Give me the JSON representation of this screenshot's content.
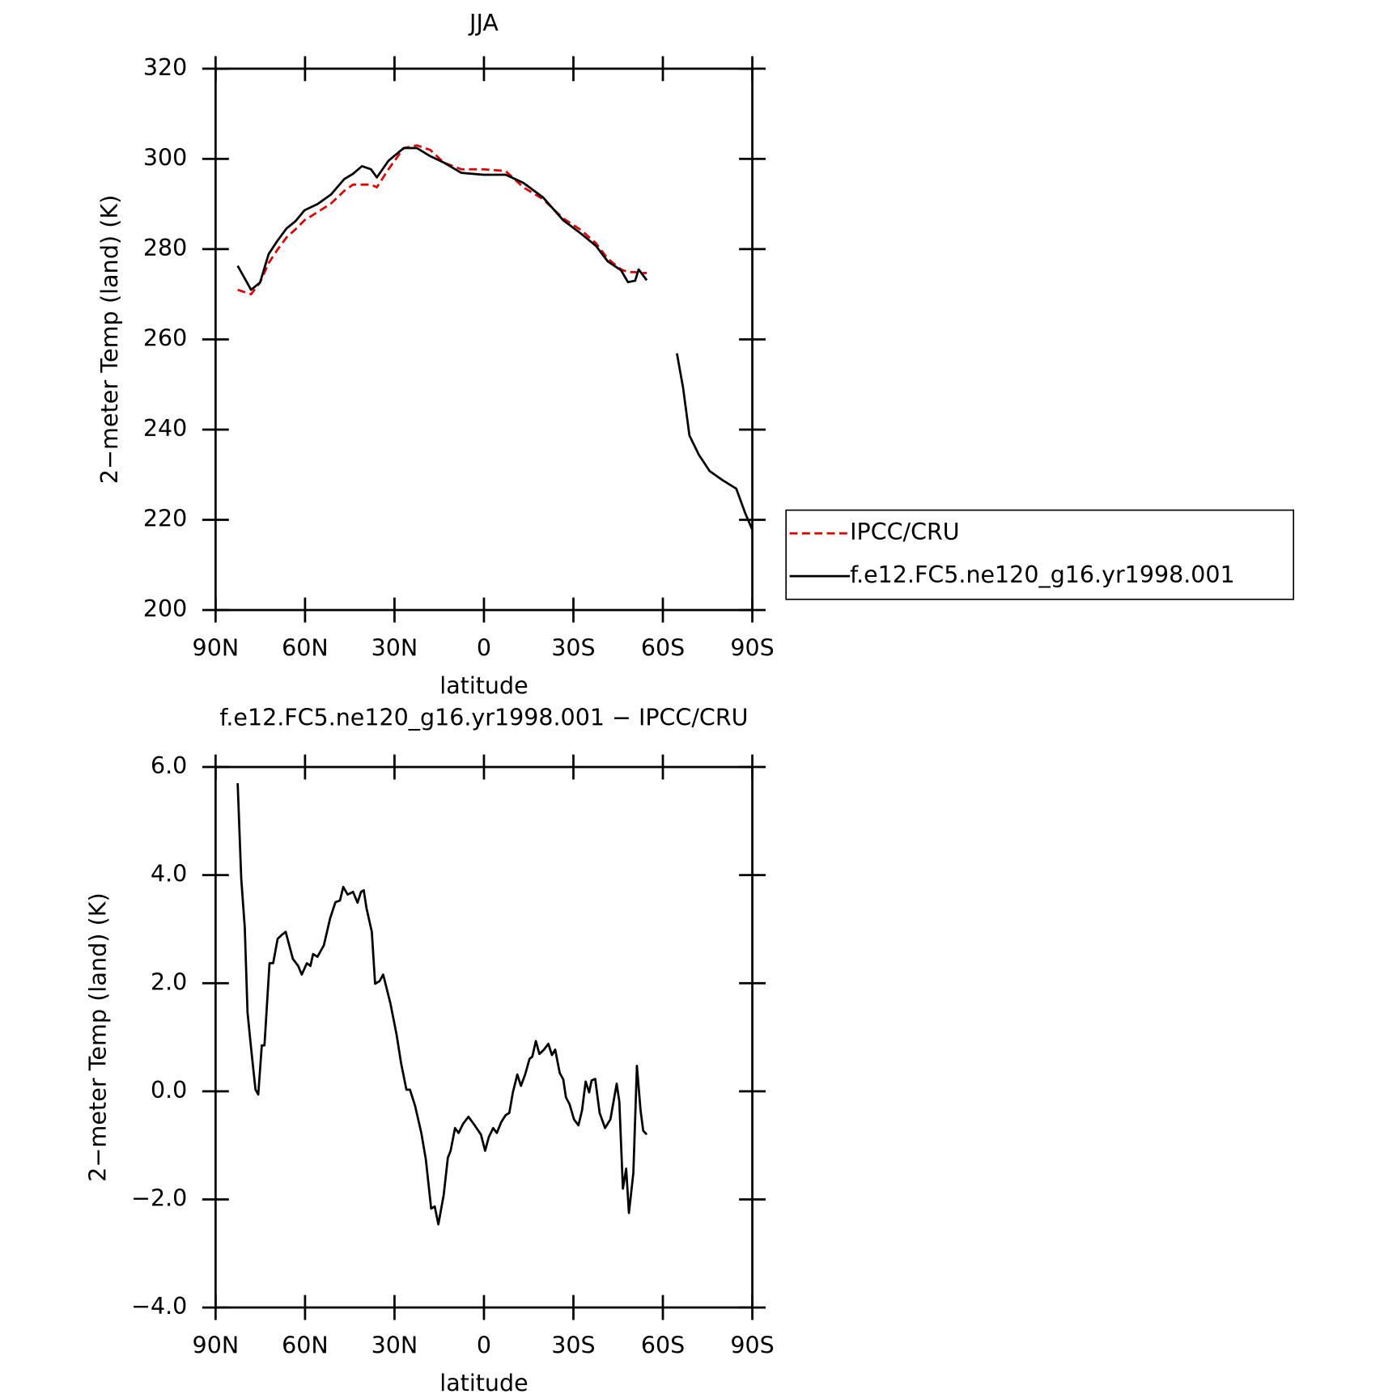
{
  "chart_data": [
    {
      "type": "line",
      "title": "JJA",
      "x_label": "latitude",
      "y_label": "2−meter Temp (land) (K)",
      "x": [
        82.6,
        78.1,
        75.1,
        72.2,
        69.2,
        66.2,
        63.2,
        60.2,
        55.8,
        51.3,
        46.9,
        43.9,
        40.9,
        37.9,
        35.9,
        32,
        26.9,
        22.5,
        18,
        13.5,
        7.6,
        0.2,
        -7.3,
        -13.2,
        -19.8,
        -26.6,
        -32.6,
        -37.6,
        -41.5,
        -46,
        -48.3,
        -50.7,
        -51.9,
        -54.6,
        -60,
        -64.7,
        -66.8,
        -68.9,
        -72.1,
        -75.7,
        -80.2,
        -84.6,
        -87.6,
        -90
      ],
      "series": [
        {
          "name": "IPCC/CRU",
          "color": "#e00000",
          "dashed": true,
          "values": [
            271,
            270,
            272.6,
            276.9,
            279.9,
            282.6,
            284.4,
            286.4,
            288.2,
            290.1,
            292.9,
            294.3,
            294.3,
            294.3,
            293.7,
            297.7,
            302.4,
            303,
            302,
            299.2,
            297.7,
            297.7,
            297.3,
            293.7,
            291.1,
            286.8,
            284.2,
            281.3,
            277.9,
            275.5,
            274.9,
            274.9,
            274.7,
            274.7,
            null,
            null,
            null,
            null,
            null,
            null,
            null,
            null,
            null,
            null
          ]
        },
        {
          "name": "f.e12.FC5.ne120_g16.yr1998.001",
          "color": "#000000",
          "dashed": false,
          "values": [
            276.3,
            271,
            272.6,
            278.9,
            281.9,
            284.6,
            286.2,
            288.6,
            290,
            292.1,
            295.5,
            296.7,
            298.4,
            297.7,
            295.9,
            299.6,
            302.4,
            302.4,
            300.6,
            299.2,
            296.9,
            296.5,
            296.5,
            294.7,
            291.5,
            286.4,
            283.4,
            280.7,
            277.3,
            275.3,
            272.7,
            273,
            275.5,
            273.1,
            null,
            256.9,
            249.2,
            238.7,
            234.4,
            230.8,
            228.7,
            226.9,
            221.5,
            217.8
          ]
        }
      ],
      "xlim": [
        90,
        -90
      ],
      "xticks": [
        {
          "value": 90,
          "label": "90N"
        },
        {
          "value": 60,
          "label": "60N"
        },
        {
          "value": 30,
          "label": "30N"
        },
        0,
        {
          "value": -30,
          "label": "30S"
        },
        {
          "value": -60,
          "label": "60S"
        },
        {
          "value": -90,
          "label": "90S"
        }
      ],
      "ylim": [
        200,
        320
      ],
      "yticks": [
        200,
        220,
        240,
        260,
        280,
        300,
        320
      ],
      "legend": "outside right"
    },
    {
      "type": "line",
      "title": "f.e12.FC5.ne120_g16.yr1998.001 − IPCC/CRU",
      "x_label": "latitude",
      "y_label": "2−meter Temp (land) (K)",
      "x": [
        82.6,
        81.4,
        80.2,
        79.3,
        78.1,
        76.6,
        75.7,
        74.5,
        73.6,
        71.9,
        70.7,
        69.2,
        67.7,
        66.5,
        64.1,
        62.3,
        61.1,
        59.4,
        58.2,
        57.3,
        55.8,
        53.7,
        51.6,
        49.8,
        48.3,
        47.2,
        45.7,
        43.9,
        42.4,
        41.2,
        40.3,
        39.4,
        37.6,
        36.5,
        35,
        33.8,
        31.4,
        29.3,
        27.8,
        26,
        24.8,
        23.1,
        21,
        19.5,
        17.7,
        16.5,
        15.3,
        13.5,
        12.1,
        11.2,
        9.7,
        8.5,
        7,
        5.2,
        3.1,
        1,
        -0.4,
        -1.6,
        -3.1,
        -4.3,
        -5.8,
        -7.3,
        -8.5,
        -9.7,
        -11.2,
        -12.4,
        -13.8,
        -15.3,
        -16.2,
        -17.4,
        -18.6,
        -20.1,
        -21.6,
        -22.8,
        -23.9,
        -25.4,
        -26.6,
        -27.5,
        -28.7,
        -30.2,
        -31.7,
        -32.9,
        -34.1,
        -35.3,
        -36.1,
        -37.3,
        -38.8,
        -40.6,
        -42.4,
        -44.5,
        -45.4,
        -46.6,
        -47.7,
        -48.6,
        -50.1,
        -51.3,
        -52.5,
        -53.4,
        -54.6
      ],
      "series": [
        {
          "color": "#000000",
          "dashed": false,
          "values": [
            5.7,
            3.94,
            3.03,
            1.46,
            0.8,
            0.03,
            -0.06,
            0.85,
            0.85,
            2.37,
            2.37,
            2.82,
            2.9,
            2.95,
            2.45,
            2.32,
            2.16,
            2.37,
            2.32,
            2.54,
            2.49,
            2.7,
            3.2,
            3.5,
            3.53,
            3.78,
            3.64,
            3.69,
            3.49,
            3.69,
            3.72,
            3.39,
            2.95,
            1.99,
            2.04,
            2.16,
            1.63,
            1.05,
            0.52,
            0.03,
            0.03,
            -0.27,
            -0.77,
            -1.26,
            -2.17,
            -2.13,
            -2.46,
            -1.92,
            -1.23,
            -1.1,
            -0.68,
            -0.77,
            -0.6,
            -0.47,
            -0.63,
            -0.8,
            -1.1,
            -0.85,
            -0.68,
            -0.77,
            -0.57,
            -0.44,
            -0.4,
            -0.02,
            0.31,
            0.1,
            0.31,
            0.6,
            0.64,
            0.93,
            0.69,
            0.77,
            0.88,
            0.67,
            0.77,
            0.34,
            0.22,
            -0.11,
            -0.24,
            -0.52,
            -0.63,
            -0.35,
            0.18,
            -0.02,
            0.2,
            0.23,
            -0.4,
            -0.68,
            -0.52,
            0.14,
            -0.19,
            -1.8,
            -1.43,
            -2.25,
            -1.51,
            0.47,
            -0.35,
            -0.73,
            -0.8
          ]
        }
      ],
      "xlim": [
        90,
        -90
      ],
      "xticks": [
        {
          "value": 90,
          "label": "90N"
        },
        {
          "value": 60,
          "label": "60N"
        },
        {
          "value": 30,
          "label": "30N"
        },
        0,
        {
          "value": -30,
          "label": "30S"
        },
        {
          "value": -60,
          "label": "60S"
        },
        {
          "value": -90,
          "label": "90S"
        }
      ],
      "ylim": [
        -4,
        6
      ],
      "yticks": [
        {
          "value": -4,
          "label": "−4.0"
        },
        {
          "value": -2,
          "label": "−2.0"
        },
        {
          "value": 0,
          "label": "0.0"
        },
        {
          "value": 2,
          "label": "2.0"
        },
        {
          "value": 4,
          "label": "4.0"
        },
        {
          "value": 6,
          "label": "6.0"
        }
      ]
    }
  ]
}
